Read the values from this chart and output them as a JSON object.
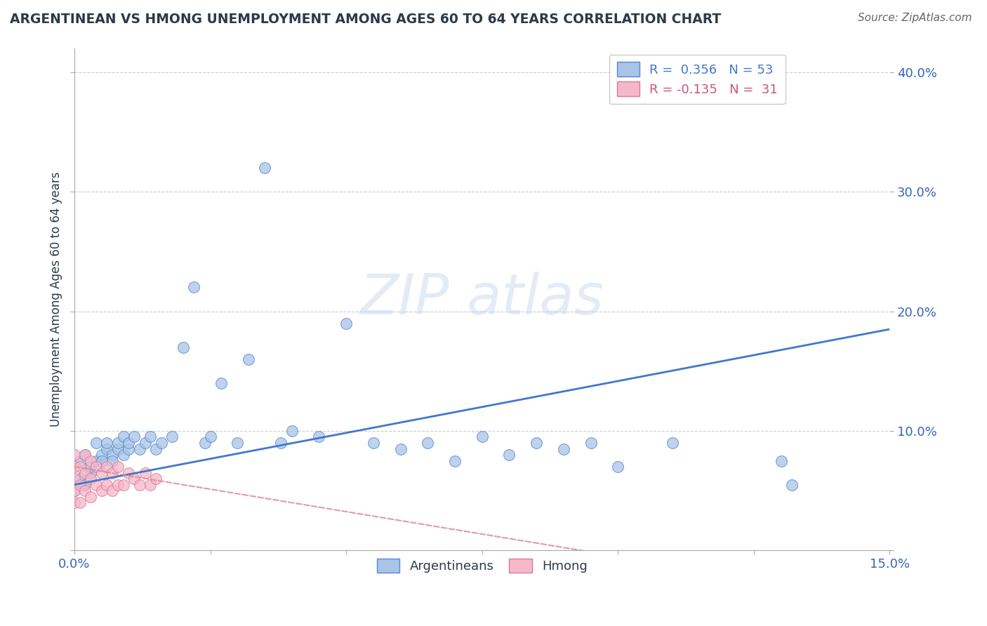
{
  "title": "ARGENTINEAN VS HMONG UNEMPLOYMENT AMONG AGES 60 TO 64 YEARS CORRELATION CHART",
  "source": "Source: ZipAtlas.com",
  "ylabel": "Unemployment Among Ages 60 to 64 years",
  "xlim": [
    0.0,
    0.15
  ],
  "ylim": [
    0.0,
    0.42
  ],
  "xtick_pos": [
    0.0,
    0.025,
    0.05,
    0.075,
    0.1,
    0.125,
    0.15
  ],
  "xtick_labels": [
    "0.0%",
    "",
    "",
    "",
    "",
    "",
    "15.0%"
  ],
  "ytick_pos": [
    0.0,
    0.1,
    0.2,
    0.3,
    0.4
  ],
  "ytick_labels": [
    "",
    "10.0%",
    "20.0%",
    "30.0%",
    "40.0%"
  ],
  "blue_face": "#a8c4e8",
  "blue_edge": "#5588cc",
  "pink_face": "#f5b8c8",
  "pink_edge": "#dd7799",
  "blue_line": "#4477cc",
  "pink_line": "#dd8899",
  "title_color": "#2d3a4a",
  "axis_label_color": "#3366bb",
  "grid_color": "#cccccc",
  "source_color": "#666666",
  "watermark_color": "#c8d8ee",
  "arg_x": [
    0.0,
    0.001,
    0.001,
    0.002,
    0.002,
    0.003,
    0.003,
    0.004,
    0.004,
    0.005,
    0.005,
    0.006,
    0.006,
    0.007,
    0.007,
    0.008,
    0.008,
    0.009,
    0.009,
    0.01,
    0.01,
    0.011,
    0.012,
    0.013,
    0.014,
    0.015,
    0.016,
    0.018,
    0.02,
    0.022,
    0.024,
    0.025,
    0.027,
    0.03,
    0.032,
    0.035,
    0.038,
    0.04,
    0.045,
    0.05,
    0.055,
    0.06,
    0.065,
    0.07,
    0.075,
    0.08,
    0.085,
    0.09,
    0.095,
    0.1,
    0.11,
    0.13,
    0.132
  ],
  "arg_y": [
    0.05,
    0.06,
    0.075,
    0.055,
    0.08,
    0.065,
    0.07,
    0.075,
    0.09,
    0.08,
    0.075,
    0.085,
    0.09,
    0.08,
    0.075,
    0.085,
    0.09,
    0.095,
    0.08,
    0.085,
    0.09,
    0.095,
    0.085,
    0.09,
    0.095,
    0.085,
    0.09,
    0.095,
    0.17,
    0.22,
    0.09,
    0.095,
    0.14,
    0.09,
    0.16,
    0.32,
    0.09,
    0.1,
    0.095,
    0.19,
    0.09,
    0.085,
    0.09,
    0.075,
    0.095,
    0.08,
    0.09,
    0.085,
    0.09,
    0.07,
    0.09,
    0.075,
    0.055
  ],
  "hmong_x": [
    0.0,
    0.0,
    0.0,
    0.0,
    0.0,
    0.001,
    0.001,
    0.001,
    0.002,
    0.002,
    0.002,
    0.003,
    0.003,
    0.003,
    0.004,
    0.004,
    0.005,
    0.005,
    0.006,
    0.006,
    0.007,
    0.007,
    0.008,
    0.008,
    0.009,
    0.01,
    0.011,
    0.012,
    0.013,
    0.014,
    0.015
  ],
  "hmong_y": [
    0.04,
    0.05,
    0.06,
    0.07,
    0.08,
    0.04,
    0.055,
    0.07,
    0.05,
    0.065,
    0.08,
    0.045,
    0.06,
    0.075,
    0.055,
    0.07,
    0.05,
    0.065,
    0.055,
    0.07,
    0.05,
    0.065,
    0.055,
    0.07,
    0.055,
    0.065,
    0.06,
    0.055,
    0.065,
    0.055,
    0.06
  ],
  "arg_line_x": [
    0.0,
    0.15
  ],
  "arg_line_y": [
    0.055,
    0.185
  ],
  "hmong_line_x": [
    0.0,
    0.04
  ],
  "hmong_line_y": [
    0.07,
    0.04
  ]
}
